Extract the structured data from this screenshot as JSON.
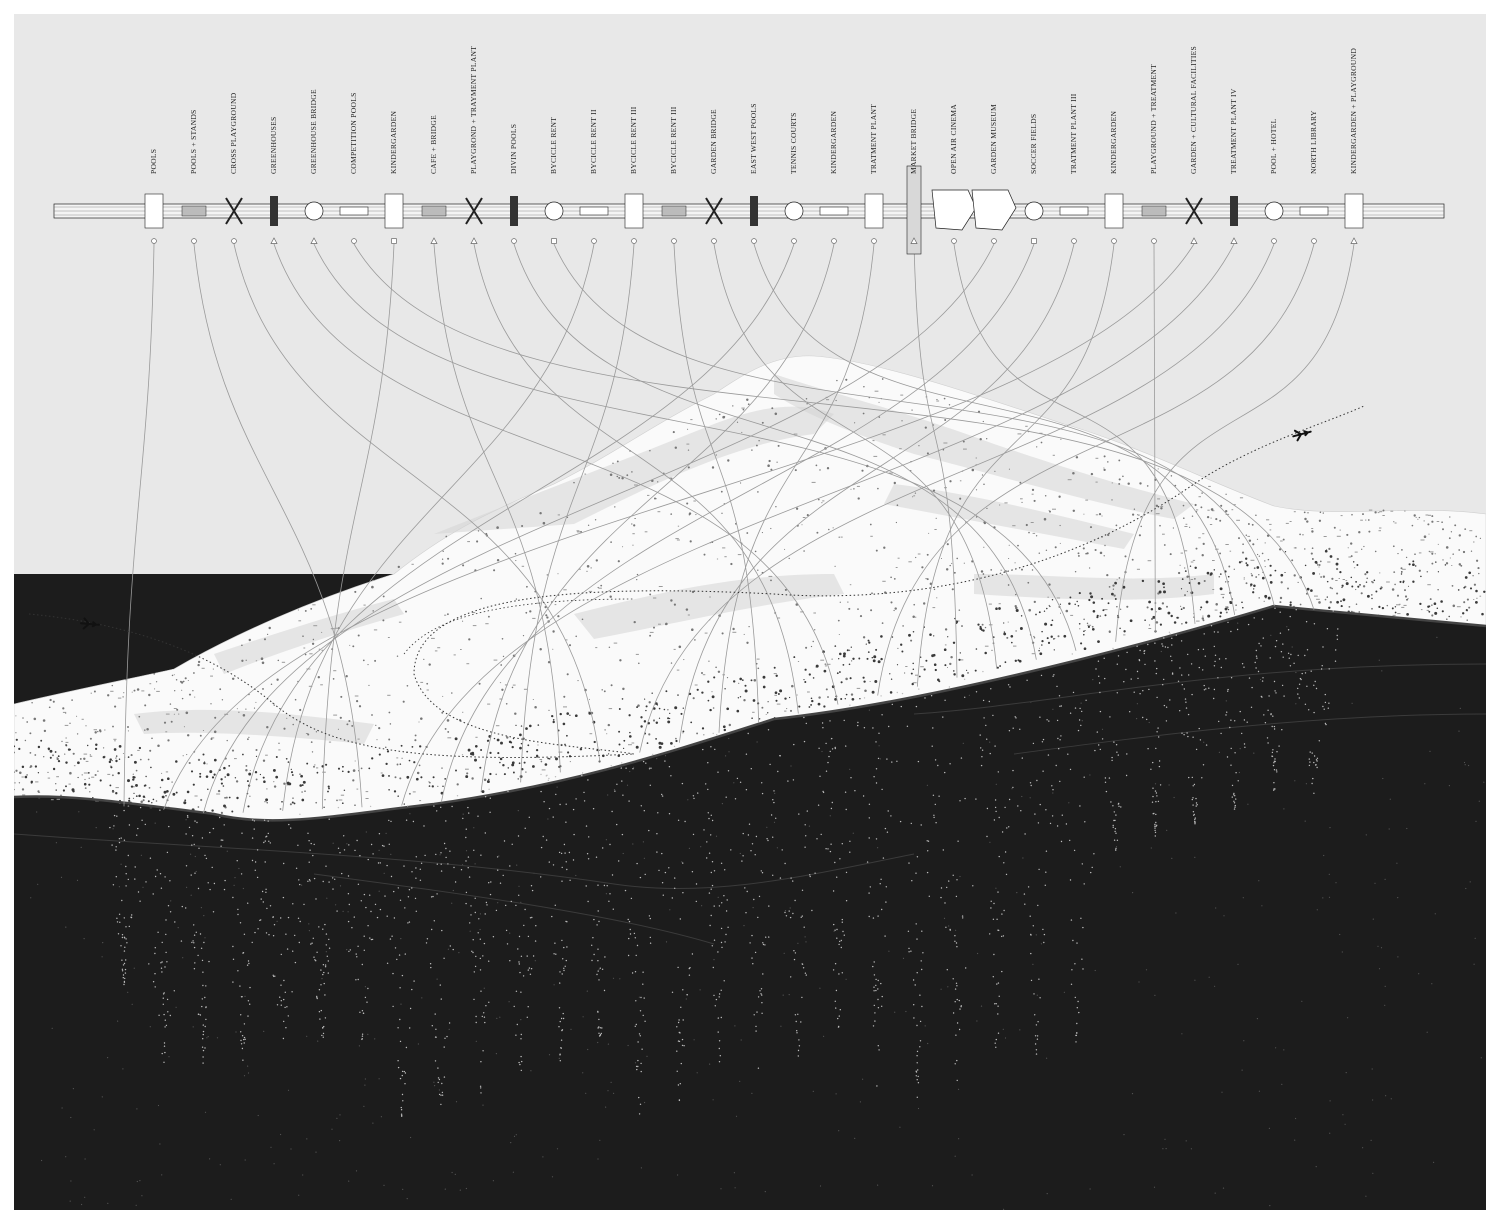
{
  "programs": [
    {
      "label": "POOLS",
      "marker": "circle"
    },
    {
      "label": "POOLS + STANDS",
      "marker": "circle"
    },
    {
      "label": "CROSS PLAYGROUND",
      "marker": "circle"
    },
    {
      "label": "GREENHOUSES",
      "marker": "triangle"
    },
    {
      "label": "GREENHOUSE BRIDGE",
      "marker": "triangle"
    },
    {
      "label": "COMPETITION POOLS",
      "marker": "circle"
    },
    {
      "label": "KINDERGARDEN",
      "marker": "square"
    },
    {
      "label": "CAFE + BRIDGE",
      "marker": "triangle"
    },
    {
      "label": "PLAYGROND + TRAYMENT PLANT",
      "marker": "triangle"
    },
    {
      "label": "DIVIN POOLS",
      "marker": "circle"
    },
    {
      "label": "BYCICLE RENT",
      "marker": "square"
    },
    {
      "label": "BYCICLE RENT II",
      "marker": "circle"
    },
    {
      "label": "BYCICLE RENT III",
      "marker": "circle"
    },
    {
      "label": "BYCICLE RENT III",
      "marker": "circle"
    },
    {
      "label": "GARDEN BRIDGE",
      "marker": "circle"
    },
    {
      "label": "EAST WEST POOLS",
      "marker": "circle"
    },
    {
      "label": "TENNIS COURTS",
      "marker": "circle"
    },
    {
      "label": "KINDERGARDEN",
      "marker": "circle"
    },
    {
      "label": "TRATMENT PLANT",
      "marker": "circle"
    },
    {
      "label": "MARKET BRIDGE",
      "marker": "triangle"
    },
    {
      "label": "OPEN AIR CINEMA",
      "marker": "circle"
    },
    {
      "label": "GARDEN MUSEUM",
      "marker": "circle"
    },
    {
      "label": "SOCCER FIELDS",
      "marker": "square"
    },
    {
      "label": "TRATMENT PLANT III",
      "marker": "circle"
    },
    {
      "label": "KINDERGARDEN",
      "marker": "circle"
    },
    {
      "label": "PLAYGROUND + TREATMENT",
      "marker": "circle"
    },
    {
      "label": "GARDEN + CULTURAL FACILITIES",
      "marker": "triangle"
    },
    {
      "label": "TREATMENT PLANT IV",
      "marker": "triangle"
    },
    {
      "label": "POOL + HOTEL",
      "marker": "circle"
    },
    {
      "label": "NORTH LIBRARY",
      "marker": "circle"
    },
    {
      "label": "KINDERGARDEN + PLAYGROUND",
      "marker": "triangle"
    }
  ],
  "colors": {
    "sheet": "#e8e8e8",
    "sea": "#1c1c1c",
    "land": "#fafafa",
    "land_shade": "#d4d4d4",
    "coast": "#444444",
    "strip": "#f4f4f4",
    "ink": "#222222",
    "link": "#9a9a9a"
  },
  "icons": [
    "airplane-icon",
    "airplane-icon"
  ]
}
